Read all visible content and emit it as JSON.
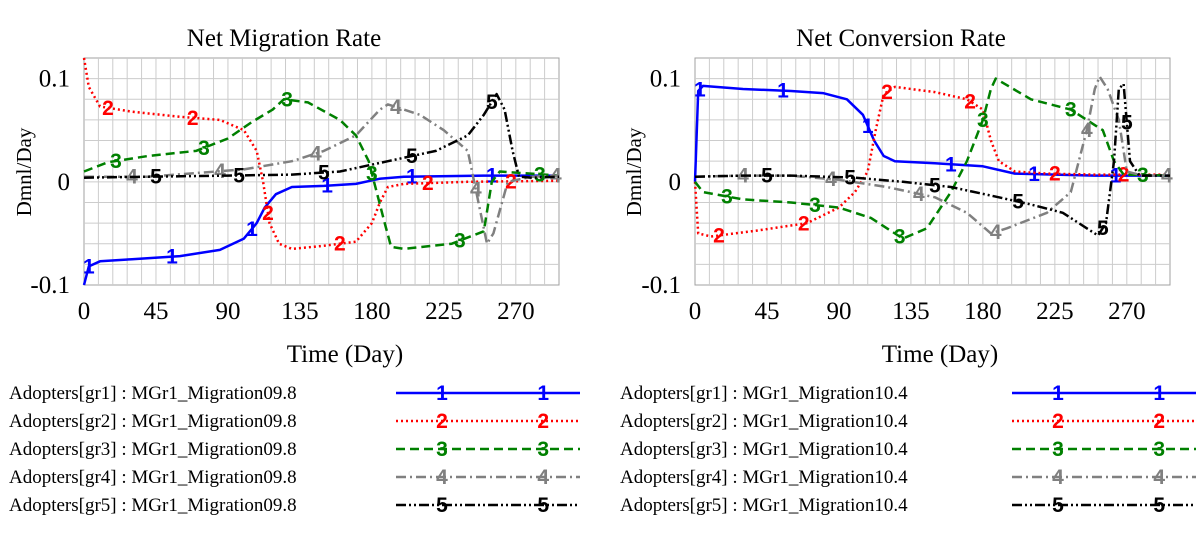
{
  "chart_data": [
    {
      "type": "line",
      "title": "Net Migration Rate",
      "xlabel": "Time (Day)",
      "ylabel": "Dmnl/Day",
      "xlim": [
        0,
        297
      ],
      "ylim": [
        -0.1,
        0.12
      ],
      "xticks": [
        0,
        45,
        90,
        135,
        180,
        225,
        270
      ],
      "xtick_labels": [
        "0",
        "45",
        "90",
        "135",
        "180",
        "225",
        "270"
      ],
      "yticks": [
        -0.1,
        0,
        0.1
      ],
      "ytick_labels": [
        "-0.1",
        "0",
        "0.1"
      ],
      "grid": true,
      "legend_position": "bottom",
      "series": [
        {
          "name": "Adopters[gr1] : MGr1_Migration09.8",
          "marker": "1",
          "color": "#0000ff",
          "dash": "solid",
          "points": [
            [
              0,
              -0.1
            ],
            [
              3,
              -0.082
            ],
            [
              10,
              -0.077
            ],
            [
              30,
              -0.075
            ],
            [
              60,
              -0.072
            ],
            [
              85,
              -0.066
            ],
            [
              100,
              -0.055
            ],
            [
              108,
              -0.04
            ],
            [
              113,
              -0.025
            ],
            [
              120,
              -0.012
            ],
            [
              130,
              -0.005
            ],
            [
              150,
              -0.004
            ],
            [
              170,
              -0.002
            ],
            [
              185,
              0.003
            ],
            [
              200,
              0.005
            ],
            [
              250,
              0.006
            ],
            [
              297,
              0.006
            ]
          ],
          "marker_x": [
            3,
            55,
            105,
            152,
            205,
            255
          ]
        },
        {
          "name": "Adopters[gr2] : MGr1_Migration09.8",
          "marker": "2",
          "color": "#ff0000",
          "dash": "dot",
          "points": [
            [
              0,
              0.12
            ],
            [
              3,
              0.092
            ],
            [
              10,
              0.073
            ],
            [
              30,
              0.068
            ],
            [
              60,
              0.063
            ],
            [
              85,
              0.06
            ],
            [
              100,
              0.05
            ],
            [
              108,
              0.03
            ],
            [
              112,
              0.0
            ],
            [
              116,
              -0.04
            ],
            [
              122,
              -0.06
            ],
            [
              130,
              -0.065
            ],
            [
              150,
              -0.062
            ],
            [
              170,
              -0.058
            ],
            [
              180,
              -0.04
            ],
            [
              185,
              -0.02
            ],
            [
              190,
              -0.005
            ],
            [
              200,
              -0.002
            ],
            [
              240,
              0.0
            ],
            [
              297,
              0.001
            ]
          ],
          "marker_x": [
            15,
            68,
            115,
            160,
            215,
            267
          ]
        },
        {
          "name": "Adopters[gr3] : MGr1_Migration09.8",
          "marker": "3",
          "color": "#008000",
          "dash": "dash",
          "points": [
            [
              0,
              0.01
            ],
            [
              15,
              0.019
            ],
            [
              40,
              0.025
            ],
            [
              70,
              0.03
            ],
            [
              90,
              0.042
            ],
            [
              105,
              0.058
            ],
            [
              118,
              0.07
            ],
            [
              125,
              0.08
            ],
            [
              140,
              0.077
            ],
            [
              160,
              0.06
            ],
            [
              170,
              0.045
            ],
            [
              178,
              0.02
            ],
            [
              183,
              -0.01
            ],
            [
              188,
              -0.04
            ],
            [
              192,
              -0.063
            ],
            [
              200,
              -0.065
            ],
            [
              230,
              -0.06
            ],
            [
              250,
              -0.048
            ],
            [
              255,
              0.0
            ],
            [
              260,
              0.01
            ],
            [
              297,
              0.006
            ]
          ],
          "marker_x": [
            20,
            75,
            127,
            180,
            235,
            285
          ]
        },
        {
          "name": "Adopters[gr4] : MGr1_Migration09.8",
          "marker": "4",
          "color": "#808080",
          "dash": "dashdot",
          "points": [
            [
              0,
              0.005
            ],
            [
              40,
              0.005
            ],
            [
              100,
              0.012
            ],
            [
              130,
              0.02
            ],
            [
              150,
              0.03
            ],
            [
              170,
              0.045
            ],
            [
              185,
              0.07
            ],
            [
              190,
              0.075
            ],
            [
              210,
              0.065
            ],
            [
              225,
              0.05
            ],
            [
              240,
              0.03
            ],
            [
              248,
              -0.03
            ],
            [
              252,
              -0.06
            ],
            [
              256,
              -0.05
            ],
            [
              265,
              0.0
            ],
            [
              280,
              0.005
            ],
            [
              297,
              0.006
            ]
          ],
          "marker_x": [
            30,
            85,
            145,
            195,
            245,
            295
          ]
        },
        {
          "name": "Adopters[gr5] : MGr1_Migration09.8",
          "marker": "5",
          "color": "#000000",
          "dash": "dashdotdot",
          "points": [
            [
              0,
              0.004
            ],
            [
              40,
              0.005
            ],
            [
              90,
              0.006
            ],
            [
              130,
              0.007
            ],
            [
              160,
              0.01
            ],
            [
              190,
              0.02
            ],
            [
              220,
              0.03
            ],
            [
              240,
              0.045
            ],
            [
              250,
              0.065
            ],
            [
              258,
              0.085
            ],
            [
              263,
              0.07
            ],
            [
              268,
              0.03
            ],
            [
              272,
              0.005
            ],
            [
              280,
              0.004
            ],
            [
              297,
              0.005
            ]
          ],
          "marker_x": [
            45,
            97,
            150,
            205,
            255
          ]
        }
      ]
    },
    {
      "type": "line",
      "title": "Net Conversion Rate",
      "xlabel": "Time (Day)",
      "ylabel": "Dmnl/Day",
      "xlim": [
        0,
        297
      ],
      "ylim": [
        -0.1,
        0.12
      ],
      "xticks": [
        0,
        45,
        90,
        135,
        180,
        225,
        270
      ],
      "xtick_labels": [
        "0",
        "45",
        "90",
        "135",
        "180",
        "225",
        "270"
      ],
      "yticks": [
        -0.1,
        0,
        0.1
      ],
      "ytick_labels": [
        "-0.1",
        "0",
        "0.1"
      ],
      "grid": true,
      "legend_position": "bottom",
      "series": [
        {
          "name": "Adopters[gr1] : MGr1_Migration10.4",
          "marker": "1",
          "color": "#0000ff",
          "dash": "solid",
          "points": [
            [
              0,
              0.0
            ],
            [
              2,
              0.088
            ],
            [
              5,
              0.093
            ],
            [
              30,
              0.09
            ],
            [
              60,
              0.088
            ],
            [
              80,
              0.086
            ],
            [
              95,
              0.08
            ],
            [
              105,
              0.065
            ],
            [
              112,
              0.04
            ],
            [
              118,
              0.025
            ],
            [
              125,
              0.02
            ],
            [
              150,
              0.018
            ],
            [
              180,
              0.015
            ],
            [
              200,
              0.008
            ],
            [
              250,
              0.006
            ],
            [
              297,
              0.006
            ]
          ],
          "marker_x": [
            3,
            55,
            108,
            160,
            212,
            263
          ]
        },
        {
          "name": "Adopters[gr2] : MGr1_Migration10.4",
          "marker": "2",
          "color": "#ff0000",
          "dash": "dot",
          "points": [
            [
              0,
              0.0
            ],
            [
              2,
              -0.05
            ],
            [
              10,
              -0.053
            ],
            [
              40,
              -0.047
            ],
            [
              70,
              -0.04
            ],
            [
              90,
              -0.025
            ],
            [
              100,
              -0.01
            ],
            [
              108,
              0.01
            ],
            [
              113,
              0.05
            ],
            [
              118,
              0.085
            ],
            [
              125,
              0.092
            ],
            [
              150,
              0.087
            ],
            [
              170,
              0.08
            ],
            [
              180,
              0.07
            ],
            [
              185,
              0.04
            ],
            [
              190,
              0.02
            ],
            [
              200,
              0.01
            ],
            [
              220,
              0.008
            ],
            [
              250,
              0.007
            ],
            [
              297,
              0.007
            ]
          ],
          "marker_x": [
            15,
            68,
            120,
            172,
            225,
            268
          ]
        },
        {
          "name": "Adopters[gr3] : MGr1_Migration10.4",
          "marker": "3",
          "color": "#008000",
          "dash": "dash",
          "points": [
            [
              0,
              0.0
            ],
            [
              5,
              -0.01
            ],
            [
              30,
              -0.017
            ],
            [
              60,
              -0.02
            ],
            [
              90,
              -0.025
            ],
            [
              110,
              -0.035
            ],
            [
              130,
              -0.055
            ],
            [
              145,
              -0.045
            ],
            [
              160,
              -0.01
            ],
            [
              170,
              0.02
            ],
            [
              180,
              0.06
            ],
            [
              185,
              0.09
            ],
            [
              188,
              0.1
            ],
            [
              210,
              0.08
            ],
            [
              235,
              0.07
            ],
            [
              255,
              0.05
            ],
            [
              262,
              0.02
            ],
            [
              268,
              0.007
            ],
            [
              297,
              0.006
            ]
          ],
          "marker_x": [
            20,
            75,
            128,
            180,
            235,
            280
          ]
        },
        {
          "name": "Adopters[gr4] : MGr1_Migration10.4",
          "marker": "4",
          "color": "#808080",
          "dash": "dashdot",
          "points": [
            [
              0,
              0.005
            ],
            [
              30,
              0.006
            ],
            [
              60,
              0.006
            ],
            [
              90,
              0.002
            ],
            [
              120,
              -0.005
            ],
            [
              150,
              -0.015
            ],
            [
              170,
              -0.03
            ],
            [
              185,
              -0.05
            ],
            [
              195,
              -0.045
            ],
            [
              220,
              -0.03
            ],
            [
              235,
              -0.01
            ],
            [
              245,
              0.05
            ],
            [
              250,
              0.09
            ],
            [
              253,
              0.102
            ],
            [
              258,
              0.09
            ],
            [
              265,
              0.06
            ],
            [
              270,
              0.01
            ],
            [
              280,
              0.006
            ],
            [
              297,
              0.006
            ]
          ],
          "marker_x": [
            30,
            85,
            140,
            188,
            245,
            295
          ]
        },
        {
          "name": "Adopters[gr5] : MGr1_Migration10.4",
          "marker": "5",
          "color": "#000000",
          "dash": "dashdotdot",
          "points": [
            [
              0,
              0.005
            ],
            [
              30,
              0.006
            ],
            [
              60,
              0.006
            ],
            [
              100,
              0.004
            ],
            [
              130,
              0.0
            ],
            [
              160,
              -0.005
            ],
            [
              190,
              -0.015
            ],
            [
              210,
              -0.022
            ],
            [
              230,
              -0.03
            ],
            [
              245,
              -0.045
            ],
            [
              252,
              -0.052
            ],
            [
              257,
              -0.04
            ],
            [
              262,
              0.02
            ],
            [
              265,
              0.09
            ],
            [
              268,
              0.095
            ],
            [
              272,
              0.02
            ],
            [
              278,
              0.006
            ],
            [
              297,
              0.006
            ]
          ],
          "marker_x": [
            45,
            97,
            150,
            202,
            255,
            270
          ]
        }
      ]
    }
  ]
}
